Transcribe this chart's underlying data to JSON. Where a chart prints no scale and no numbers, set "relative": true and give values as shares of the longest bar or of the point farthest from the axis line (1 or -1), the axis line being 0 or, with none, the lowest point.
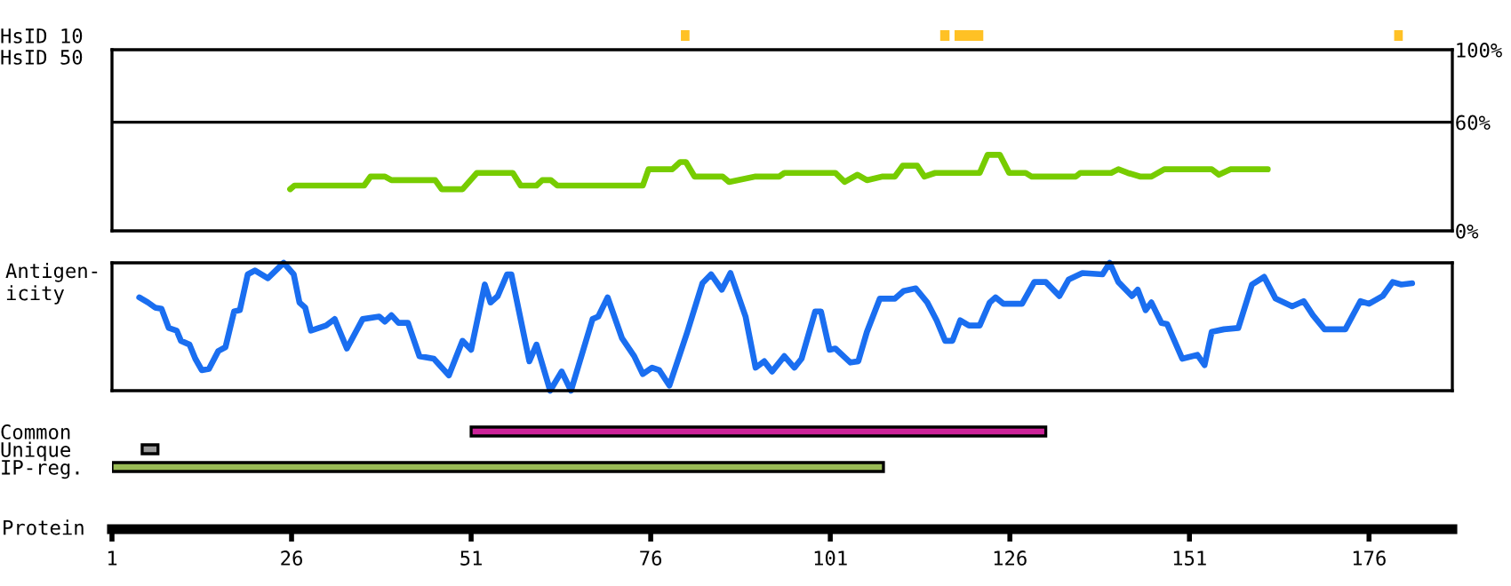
{
  "chart_data": [
    {
      "type": "bar",
      "orientation": "horizontal",
      "categories": [
        "HsID 10",
        "HsID 50"
      ],
      "xlim": [
        1,
        187.6
      ],
      "tick_labels": "y",
      "series": [
        {
          "color": "#ffc125",
          "base": [
            80.2,
            null
          ],
          "values": [
            1.2,
            null
          ]
        },
        {
          "color": "#ffc125",
          "base": [
            116.3,
            null
          ],
          "values": [
            1.3,
            null
          ]
        },
        {
          "color": "#ffc125",
          "base": [
            118.3,
            null
          ],
          "values": [
            4.0,
            null
          ]
        },
        {
          "color": "#ffc125",
          "base": [
            179.5,
            null
          ],
          "values": [
            1.2,
            null
          ]
        }
      ]
    },
    {
      "type": "line",
      "xlim": [
        1,
        187.6
      ],
      "ylim": [
        0,
        100
      ],
      "yticks": [
        {
          "value": 0,
          "label": "0%"
        },
        {
          "value": 60,
          "label": "60%"
        },
        {
          "value": 100,
          "label": "100%"
        }
      ],
      "tick_labels": "y",
      "ref_lines": [
        {
          "axis": "y",
          "value": 60,
          "color": "#000000"
        }
      ],
      "series": [
        {
          "x": [
            25.8,
            26.4,
            36.1,
            37.0,
            39.0,
            39.9,
            46.0,
            46.9,
            49.8,
            51.8,
            56.8,
            57.9,
            60.1,
            60.9,
            62.1,
            63.0,
            74.9,
            75.7,
            79.0,
            80.1,
            80.9,
            82.1,
            86.0,
            86.9,
            90.6,
            93.9,
            94.6,
            101.7,
            103.0,
            104.8,
            106.1,
            108.3,
            110.0,
            111.1,
            113.1,
            114.1,
            115.6,
            121.8,
            122.9,
            124.6,
            125.9,
            128.2,
            129.0,
            135.2,
            135.8,
            140.1,
            141.1,
            142.4,
            144.1,
            145.7,
            147.5,
            154.1,
            155.1,
            156.7,
            161.9
          ],
          "values": [
            23,
            25,
            25,
            30,
            30,
            28,
            28,
            23,
            23,
            32,
            32,
            25,
            25,
            28,
            28,
            25,
            25,
            34,
            34,
            38,
            38,
            30,
            30,
            27,
            30,
            30,
            32,
            32,
            27,
            31,
            28,
            30,
            30,
            36,
            36,
            30,
            32,
            32,
            42,
            42,
            32,
            32,
            30,
            30,
            32,
            32,
            34,
            32,
            30,
            30,
            34,
            34,
            31,
            34,
            34
          ],
          "color": "#77cc00"
        }
      ]
    },
    {
      "type": "line",
      "relative": true,
      "ylabel": "Antigen-\nicity",
      "xlim": [
        1,
        187.6
      ],
      "tick_labels": false,
      "series": [
        {
          "x": [
            4.8,
            6.0,
            7.0,
            7.9,
            8.9,
            10.0,
            10.6,
            11.8,
            12.6,
            13.5,
            14.5,
            15.8,
            16.8,
            18.0,
            18.8,
            19.9,
            20.9,
            22.7,
            24.9,
            26.3,
            27.1,
            27.9,
            28.7,
            30.8,
            32.0,
            33.7,
            35.9,
            38.2,
            39.0,
            39.9,
            40.9,
            42.2,
            43.8,
            45.8,
            47.9,
            49.8,
            51.0,
            52.9,
            53.7,
            54.7,
            56.0,
            56.6,
            59.1,
            60.1,
            62.0,
            63.6,
            64.9,
            67.9,
            68.7,
            70.0,
            72.0,
            73.7,
            74.9,
            76.2,
            77.2,
            78.6,
            81.1,
            83.2,
            84.4,
            85.9,
            87.1,
            89.2,
            90.6,
            91.8,
            92.9,
            94.6,
            96.0,
            97.0,
            98.9,
            99.7,
            100.9,
            101.7,
            103.8,
            104.9,
            106.1,
            107.9,
            110.0,
            111.2,
            112.9,
            114.5,
            115.8,
            117.0,
            118.0,
            119.1,
            120.3,
            121.8,
            123.2,
            124.0,
            125.1,
            127.7,
            129.4,
            131.0,
            132.9,
            134.2,
            136.1,
            138.9,
            139.9,
            141.1,
            143.0,
            143.8,
            144.9,
            145.7,
            147.1,
            147.9,
            150.0,
            152.1,
            153.1,
            154.1,
            155.8,
            157.8,
            159.7,
            161.4,
            163.0,
            165.3,
            166.9,
            168.2,
            169.8,
            172.7,
            174.8,
            176.0,
            177.9,
            179.3,
            180.5,
            182.0
          ],
          "values": [
            0.73,
            0.69,
            0.65,
            0.64,
            0.49,
            0.47,
            0.39,
            0.36,
            0.25,
            0.16,
            0.17,
            0.31,
            0.34,
            0.62,
            0.63,
            0.91,
            0.94,
            0.88,
            1.0,
            0.91,
            0.69,
            0.65,
            0.47,
            0.51,
            0.56,
            0.33,
            0.56,
            0.58,
            0.54,
            0.59,
            0.53,
            0.53,
            0.27,
            0.25,
            0.12,
            0.39,
            0.32,
            0.83,
            0.69,
            0.74,
            0.91,
            0.91,
            0.23,
            0.36,
            0.0,
            0.15,
            0.0,
            0.56,
            0.58,
            0.73,
            0.41,
            0.27,
            0.13,
            0.18,
            0.16,
            0.04,
            0.46,
            0.84,
            0.91,
            0.79,
            0.92,
            0.58,
            0.18,
            0.23,
            0.15,
            0.27,
            0.18,
            0.25,
            0.62,
            0.62,
            0.32,
            0.33,
            0.22,
            0.23,
            0.46,
            0.72,
            0.72,
            0.78,
            0.8,
            0.69,
            0.55,
            0.39,
            0.39,
            0.55,
            0.51,
            0.51,
            0.69,
            0.73,
            0.68,
            0.68,
            0.85,
            0.85,
            0.74,
            0.87,
            0.92,
            0.91,
            1.0,
            0.85,
            0.74,
            0.79,
            0.63,
            0.69,
            0.53,
            0.52,
            0.25,
            0.28,
            0.2,
            0.46,
            0.48,
            0.49,
            0.83,
            0.89,
            0.72,
            0.66,
            0.7,
            0.59,
            0.48,
            0.48,
            0.7,
            0.68,
            0.74,
            0.85,
            0.83,
            0.84
          ],
          "color": "#1a6ef0"
        }
      ]
    },
    {
      "type": "bar",
      "orientation": "horizontal",
      "categories": [
        "Common",
        "Unique",
        "IP-reg."
      ],
      "xlabel": "Protein",
      "xlim": [
        1,
        187.6
      ],
      "xticks": [
        1,
        26,
        51,
        76,
        101,
        126,
        151,
        176
      ],
      "base": [
        51,
        5.2,
        1
      ],
      "values": [
        80,
        2.2,
        107.4
      ],
      "colors": [
        "#cc2299",
        "#999999",
        "#99bb55"
      ]
    }
  ]
}
